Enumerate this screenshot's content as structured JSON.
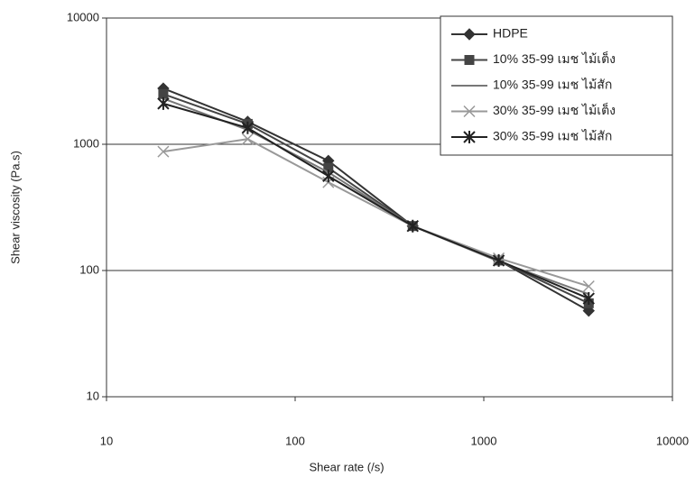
{
  "chart_data": {
    "type": "line",
    "xlabel": "Shear rate (/s)",
    "ylabel": "Shear viscosity (Pa.s)",
    "x": [
      20,
      56,
      150,
      420,
      1200,
      3600
    ],
    "xlim": [
      10,
      10000
    ],
    "xticks": [
      10,
      100,
      1000,
      10000
    ],
    "ylim": [
      10,
      10000
    ],
    "yticks": [
      10,
      100,
      1000,
      10000
    ],
    "xscale": "log",
    "yscale": "log",
    "grid": true,
    "legend": "upper right",
    "series": [
      {
        "name": "HDPE",
        "color": "#333333",
        "marker": "diamond",
        "values": [
          2770,
          1510,
          740,
          225,
          120,
          48
        ]
      },
      {
        "name": "10% 35-99 เมช ไม้เต็ง",
        "color": "#444444",
        "marker": "square",
        "values": [
          2500,
          1450,
          650,
          225,
          120,
          55
        ]
      },
      {
        "name": "10% 35-99 เมช ไม้สัก",
        "color": "#777777",
        "marker": "none",
        "values": [
          2300,
          1300,
          600,
          225,
          118,
          65
        ]
      },
      {
        "name": "30% 35-99 เมช ไม้เต็ง",
        "color": "#999999",
        "marker": "x",
        "values": [
          875,
          1100,
          500,
          225,
          125,
          75
        ]
      },
      {
        "name": "30% 35-99 เมช ไม้สัก",
        "color": "#222222",
        "marker": "asterisk",
        "values": [
          2100,
          1350,
          560,
          225,
          120,
          60
        ]
      }
    ]
  }
}
